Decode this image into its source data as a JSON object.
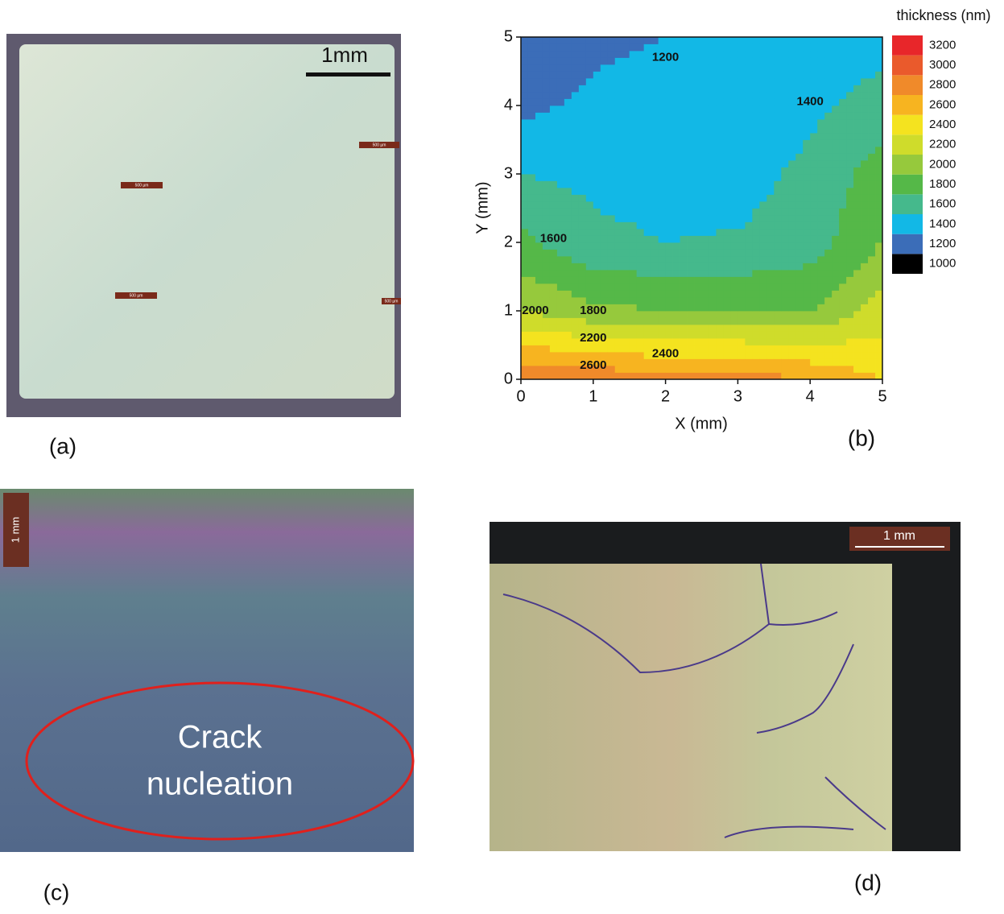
{
  "panels": {
    "a": {
      "label": "(a)",
      "scale_bar": "1mm",
      "small_scale_bars": [
        "500 µm",
        "500 µm",
        "500 µm",
        "500 µm"
      ]
    },
    "c": {
      "label": "(c)",
      "scale_bar": "1 mm",
      "annotation": [
        "Crack",
        "nucleation"
      ]
    },
    "d": {
      "label": "(d)",
      "scale_bar": "1 mm"
    }
  },
  "chart_data": {
    "type": "contour",
    "label": "(b)",
    "x_label": "X (mm)",
    "y_label": "Y (mm)",
    "x": [
      0,
      1,
      2,
      3,
      4,
      5
    ],
    "y": [
      0,
      1,
      2,
      3,
      4,
      5
    ],
    "z": [
      [
        2800,
        2750,
        2700,
        2700,
        2600,
        2400
      ],
      [
        2000,
        1850,
        1800,
        1800,
        1800,
        2100
      ],
      [
        1650,
        1450,
        1400,
        1420,
        1500,
        1800
      ],
      [
        1400,
        1350,
        1320,
        1320,
        1450,
        1700
      ],
      [
        1150,
        1250,
        1300,
        1300,
        1350,
        1500
      ],
      [
        1050,
        1150,
        1200,
        1250,
        1280,
        1300
      ]
    ],
    "xlim": [
      0,
      5
    ],
    "ylim": [
      0,
      5
    ],
    "xticks": [
      0,
      1,
      2,
      3,
      4,
      5
    ],
    "yticks": [
      0,
      1,
      2,
      3,
      4,
      5
    ],
    "colorbar": {
      "title": "thickness (nm)",
      "levels": [
        1000,
        1200,
        1400,
        1600,
        1800,
        2000,
        2200,
        2400,
        2600,
        2800,
        3000,
        3200
      ],
      "colors": [
        "#000000",
        "#3b6db8",
        "#12b8e6",
        "#45b98c",
        "#55b848",
        "#96c93c",
        "#cfdc2b",
        "#f4e31f",
        "#f7b420",
        "#f08a2a",
        "#ea5a2c",
        "#e8262a"
      ]
    },
    "contour_labels": [
      {
        "value": 1200,
        "x": 2.0,
        "y": 4.7
      },
      {
        "value": 1400,
        "x": 4.0,
        "y": 4.05
      },
      {
        "value": 1600,
        "x": 0.45,
        "y": 2.05
      },
      {
        "value": 2000,
        "x": 0.2,
        "y": 1.0
      },
      {
        "value": 1800,
        "x": 1.0,
        "y": 1.0
      },
      {
        "value": 2200,
        "x": 1.0,
        "y": 0.6
      },
      {
        "value": 2400,
        "x": 2.0,
        "y": 0.37
      },
      {
        "value": 2600,
        "x": 1.0,
        "y": 0.2
      }
    ]
  }
}
